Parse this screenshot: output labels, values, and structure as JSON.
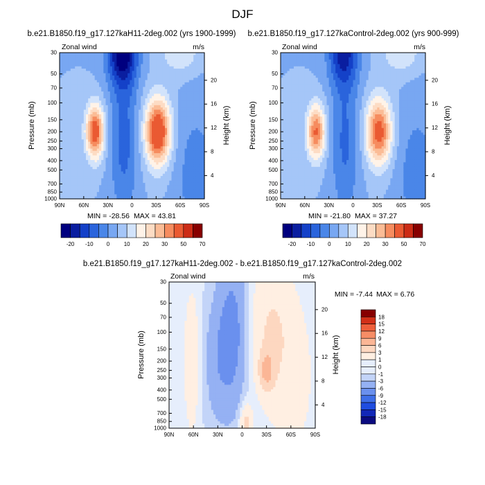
{
  "figure_title": "DJF",
  "chart_data": [
    {
      "type": "contour",
      "title": "b.e21.B1850.f19_g17.127kaH11-2deg.002 (yrs 1900-1999)",
      "left_label": "Zonal wind",
      "right_label": "m/s",
      "xlabel": "",
      "ylabel": "Pressure (mb)",
      "y2label": "Height (km)",
      "x_ticks": [
        "90N",
        "60N",
        "30N",
        "0",
        "30S",
        "60S",
        "90S"
      ],
      "y_ticks": [
        "30",
        "50",
        "70",
        "100",
        "150",
        "200",
        "250",
        "300",
        "400",
        "500",
        "700",
        "850",
        "1000"
      ],
      "y2_ticks": [
        "20",
        "16",
        "12",
        "8",
        "4"
      ],
      "min_text": "MIN = -28.56",
      "max_text": "MAX =  43.81",
      "min": -28.56,
      "max": 43.81,
      "colorbar_levels": [
        "-20",
        "-10",
        "0",
        "10",
        "20",
        "30",
        "50",
        "70"
      ],
      "features": [
        {
          "lat": -60,
          "p": 30,
          "value": 10,
          "sx": 16,
          "sl": 0.35
        },
        {
          "lat": -32,
          "p": 200,
          "value": 40,
          "sx": 11,
          "sl": 0.55
        },
        {
          "lat": 46,
          "p": 200,
          "value": 35,
          "sx": 8,
          "sl": 0.45
        },
        {
          "lat": 12,
          "p": 30,
          "value": -28,
          "sx": 13,
          "sl": 0.55
        },
        {
          "lat": 10,
          "p": 250,
          "value": -12,
          "sx": 12,
          "sl": 1.3
        },
        {
          "lat": -80,
          "p": 600,
          "value": -8,
          "sx": 18,
          "sl": 1.2
        }
      ]
    },
    {
      "type": "contour",
      "title": "b.e21.B1850.f19_g17.127kaControl-2deg.002 (yrs 900-999)",
      "left_label": "Zonal wind",
      "right_label": "m/s",
      "xlabel": "",
      "ylabel": "Pressure (mb)",
      "y2label": "Height (km)",
      "x_ticks": [
        "90N",
        "60N",
        "30N",
        "0",
        "30S",
        "60S",
        "90S"
      ],
      "y_ticks": [
        "30",
        "50",
        "70",
        "100",
        "150",
        "200",
        "250",
        "300",
        "400",
        "500",
        "700",
        "850",
        "1000"
      ],
      "y2_ticks": [
        "20",
        "16",
        "12",
        "8",
        "4"
      ],
      "min_text": "MIN = -21.80",
      "max_text": "MAX =  37.27",
      "min": -21.8,
      "max": 37.27,
      "colorbar_levels": [
        "-20",
        "-10",
        "0",
        "10",
        "20",
        "30",
        "50",
        "70"
      ],
      "features": [
        {
          "lat": -60,
          "p": 30,
          "value": 10,
          "sx": 16,
          "sl": 0.35
        },
        {
          "lat": -32,
          "p": 200,
          "value": 34,
          "sx": 11,
          "sl": 0.55
        },
        {
          "lat": 46,
          "p": 200,
          "value": 31,
          "sx": 8,
          "sl": 0.45
        },
        {
          "lat": 12,
          "p": 30,
          "value": -21,
          "sx": 13,
          "sl": 0.55
        },
        {
          "lat": 10,
          "p": 250,
          "value": -11,
          "sx": 12,
          "sl": 1.3
        },
        {
          "lat": -80,
          "p": 600,
          "value": -8,
          "sx": 18,
          "sl": 1.2
        }
      ]
    },
    {
      "type": "contour",
      "title": "b.e21.B1850.f19_g17.127kaH11-2deg.002 - b.e21.B1850.f19_g17.127kaControl-2deg.002",
      "left_label": "Zonal wind",
      "right_label": "m/s",
      "xlabel": "",
      "ylabel": "Pressure (mb)",
      "y2label": "Height (km)",
      "x_ticks": [
        "90N",
        "60N",
        "30N",
        "0",
        "30S",
        "60S",
        "90S"
      ],
      "y_ticks": [
        "30",
        "50",
        "70",
        "100",
        "150",
        "200",
        "250",
        "300",
        "400",
        "500",
        "700",
        "850",
        "1000"
      ],
      "y2_ticks": [
        "20",
        "16",
        "12",
        "8",
        "4"
      ],
      "min_text": "MIN = -7.44",
      "max_text": "MAX =   6.76",
      "min": -7.44,
      "max": 6.76,
      "colorbar_levels": [
        "18",
        "15",
        "12",
        "9",
        "6",
        "3",
        "1",
        "0",
        "-1",
        "-3",
        "-6",
        "-9",
        "-12",
        "-15",
        "-18"
      ],
      "features": [
        {
          "lat": -30,
          "p": 250,
          "value": 6,
          "sx": 6,
          "sl": 0.3
        },
        {
          "lat": -35,
          "p": 100,
          "value": 3,
          "sx": 18,
          "sl": 1.2
        },
        {
          "lat": -65,
          "p": 300,
          "value": 1.5,
          "sx": 20,
          "sl": 1.5
        },
        {
          "lat": 12,
          "p": 100,
          "value": -4,
          "sx": 12,
          "sl": 1.2
        },
        {
          "lat": 30,
          "p": 200,
          "value": -2,
          "sx": 12,
          "sl": 1.0
        },
        {
          "lat": 62,
          "p": 200,
          "value": 2,
          "sx": 8,
          "sl": 1.4
        },
        {
          "lat": -5,
          "p": 900,
          "value": 4,
          "sx": 5,
          "sl": 0.3
        }
      ]
    }
  ],
  "colors": {
    "plot_a": [
      "#00007f",
      "#0a1ea0",
      "#1441c8",
      "#2a64dc",
      "#4a86e8",
      "#78a7f2",
      "#a5c6f8",
      "#d2e3fb",
      "#fff3e8",
      "#fddcc4",
      "#fbbc96",
      "#f68c5f",
      "#ea5a32",
      "#cc2c16",
      "#880000"
    ],
    "plot_c": [
      "#0b0b80",
      "#1228b8",
      "#1f4de0",
      "#3e6ee8",
      "#6a90ee",
      "#95b1f3",
      "#c3d4f8",
      "#e6eefc",
      "#ffefe2",
      "#fdd7c0",
      "#fbb696",
      "#f68d66",
      "#ee5f3b",
      "#d23018",
      "#870000"
    ]
  }
}
